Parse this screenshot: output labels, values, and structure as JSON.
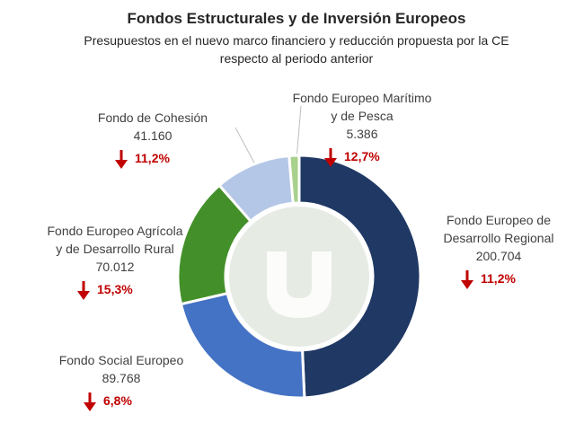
{
  "chart_data": {
    "type": "pie",
    "donut": true,
    "title": "Fondos Estructurales y de Inversión Europeos",
    "subtitle": "Presupuestos en el nuevo marco financiero y reducción propuesta por la CE\nrespecto al periodo anterior",
    "categories": [
      "Fondo Europeo de\nDesarrollo Regional",
      "Fondo Social Europeo",
      "Fondo Europeo Agrícola\ny de Desarrollo Rural",
      "Fondo de Cohesión",
      "Fondo Europeo Marítimo\ny de Pesca"
    ],
    "values": [
      200704,
      89768,
      70012,
      41160,
      5386
    ],
    "value_labels": [
      "200.704",
      "89.768",
      "70.012",
      "41.160",
      "5.386"
    ],
    "colors": [
      "#1f3864",
      "#4472c4",
      "#43902a",
      "#b4c7e7",
      "#a9d18e"
    ],
    "reductions": [
      11.2,
      6.8,
      15.3,
      11.2,
      12.7
    ],
    "reduction_labels": [
      "11,2%",
      "6,8%",
      "15,3%",
      "11,2%",
      "12,7%"
    ]
  }
}
